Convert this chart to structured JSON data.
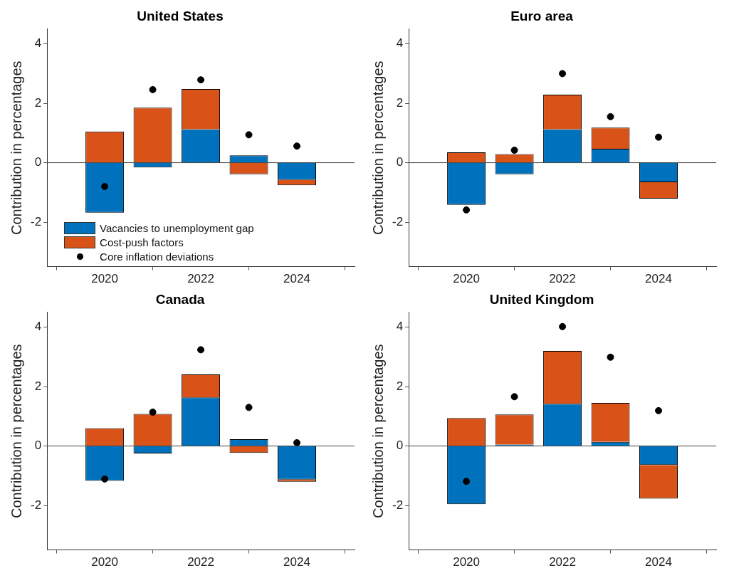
{
  "chart_data": [
    {
      "type": "bar",
      "title": "United States",
      "ylabel": "Contribution in percentages",
      "x": [
        2020,
        2021,
        2022,
        2023,
        2024
      ],
      "stacked": true,
      "legend": "bottom left",
      "marker": "circle",
      "series": [
        {
          "name": "Vacancies to unemployment gap",
          "color": "#0072bd",
          "values": [
            -1.68,
            -0.16,
            1.13,
            0.25,
            -0.58
          ]
        },
        {
          "name": "Cost-push factors",
          "color": "#d95319",
          "values": [
            1.05,
            1.85,
            1.35,
            -0.39,
            -0.18
          ]
        },
        {
          "name": "Core inflation deviations",
          "type": "scatter",
          "color": "#000000",
          "values": [
            -0.8,
            2.46,
            2.79,
            0.94,
            0.56
          ]
        }
      ],
      "xlim": [
        2018.8,
        2025.2
      ],
      "xticks": [
        2020,
        2022,
        2024
      ],
      "ylim": [
        -3.5,
        4.5
      ],
      "yticks": [
        -2,
        0,
        2,
        4
      ],
      "ref_lines": [
        {
          "axis": "y",
          "value": 0,
          "color": "#404040"
        }
      ]
    },
    {
      "type": "bar",
      "title": "Euro area",
      "ylabel": "Contribution in percentages",
      "x": [
        2020,
        2021,
        2022,
        2023,
        2024
      ],
      "stacked": true,
      "marker": "circle",
      "series": [
        {
          "color": "#0072bd",
          "values": [
            -1.42,
            -0.39,
            1.13,
            0.47,
            -0.66
          ]
        },
        {
          "color": "#d95319",
          "values": [
            0.35,
            0.29,
            1.16,
            0.71,
            -0.55
          ]
        },
        {
          "type": "scatter",
          "color": "#000000",
          "values": [
            -1.59,
            0.42,
            3.0,
            1.55,
            0.86
          ]
        }
      ],
      "xlim": [
        2018.8,
        2025.2
      ],
      "xticks": [
        2020,
        2022,
        2024
      ],
      "ylim": [
        -3.5,
        4.5
      ],
      "yticks": [
        -2,
        0,
        2,
        4
      ],
      "ref_lines": [
        {
          "axis": "y",
          "value": 0,
          "color": "#404040"
        }
      ]
    },
    {
      "type": "bar",
      "title": "Canada",
      "ylabel": "Contribution in percentages",
      "x": [
        2020,
        2021,
        2022,
        2023,
        2024
      ],
      "stacked": true,
      "marker": "circle",
      "series": [
        {
          "color": "#0072bd",
          "values": [
            -1.17,
            -0.25,
            1.64,
            0.23,
            -1.13
          ]
        },
        {
          "color": "#d95319",
          "values": [
            0.6,
            1.08,
            0.77,
            -0.23,
            -0.07
          ]
        },
        {
          "type": "scatter",
          "color": "#000000",
          "values": [
            -1.11,
            1.14,
            3.24,
            1.3,
            0.11
          ]
        }
      ],
      "xlim": [
        2018.8,
        2025.2
      ],
      "xticks": [
        2020,
        2022,
        2024
      ],
      "ylim": [
        -3.5,
        4.5
      ],
      "yticks": [
        -2,
        0,
        2,
        4
      ],
      "ref_lines": [
        {
          "axis": "y",
          "value": 0,
          "color": "#404040"
        }
      ]
    },
    {
      "type": "bar",
      "title": "United Kingdom",
      "ylabel": "Contribution in percentages",
      "x": [
        2020,
        2021,
        2022,
        2023,
        2024
      ],
      "stacked": true,
      "marker": "circle",
      "series": [
        {
          "color": "#0072bd",
          "values": [
            -1.96,
            0.05,
            1.42,
            0.14,
            -0.64
          ]
        },
        {
          "color": "#d95319",
          "values": [
            0.94,
            1.01,
            1.78,
            1.31,
            -1.13
          ]
        },
        {
          "type": "scatter",
          "color": "#000000",
          "values": [
            -1.19,
            1.66,
            4.02,
            2.99,
            1.19
          ]
        }
      ],
      "xlim": [
        2018.8,
        2025.2
      ],
      "xticks": [
        2020,
        2022,
        2024
      ],
      "ylim": [
        -3.5,
        4.5
      ],
      "yticks": [
        -2,
        0,
        2,
        4
      ],
      "ref_lines": [
        {
          "axis": "y",
          "value": 0,
          "color": "#404040"
        }
      ]
    }
  ]
}
